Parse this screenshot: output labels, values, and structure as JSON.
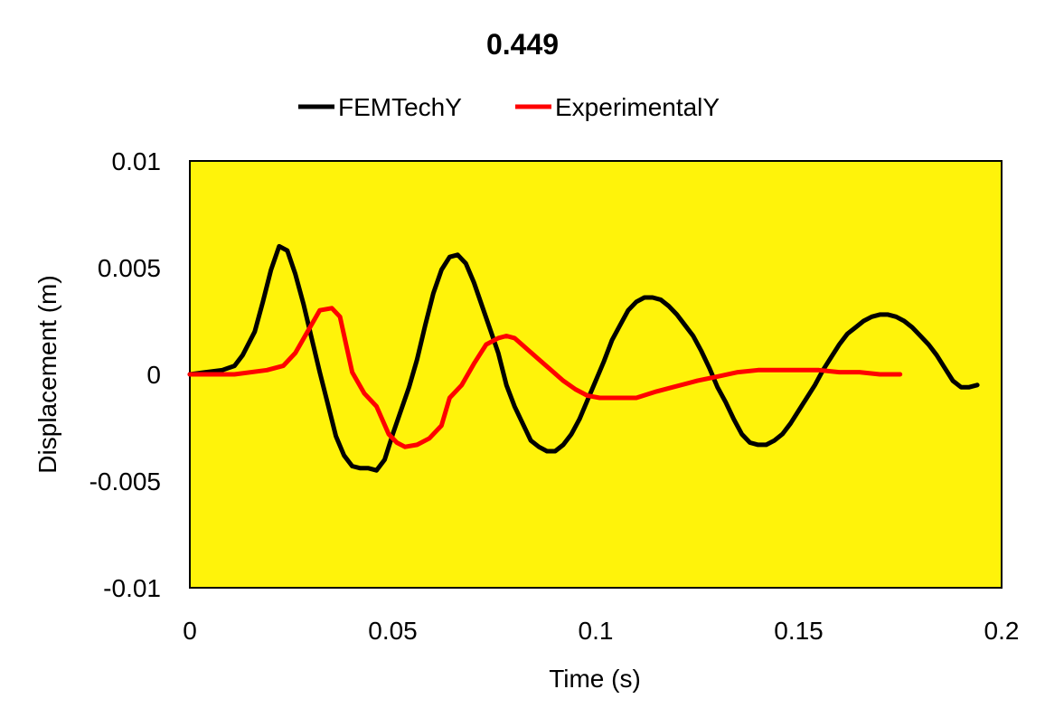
{
  "chart_data": {
    "type": "line",
    "title": "0.449",
    "xlabel": "Time (s)",
    "ylabel": "Displacement (m)",
    "xlim": [
      0,
      0.2
    ],
    "ylim": [
      -0.01,
      0.01
    ],
    "xticks": [
      0,
      0.05,
      0.1,
      0.15,
      0.2
    ],
    "xtick_labels": [
      "0",
      "0.05",
      "0.1",
      "0.15",
      "0.2"
    ],
    "yticks": [
      0.01,
      0.005,
      0,
      -0.005,
      -0.01
    ],
    "ytick_labels": [
      "0.01",
      "0.005",
      "0",
      "-0.005",
      "-0.01"
    ],
    "grid": false,
    "legend_position": "top",
    "plot_background": "#FFF30A",
    "series": [
      {
        "name": "FEMTechY",
        "color": "#000000",
        "x": [
          0,
          0.004,
          0.008,
          0.011,
          0.013,
          0.016,
          0.018,
          0.02,
          0.022,
          0.024,
          0.026,
          0.028,
          0.03,
          0.032,
          0.034,
          0.036,
          0.038,
          0.04,
          0.042,
          0.044,
          0.046,
          0.048,
          0.05,
          0.052,
          0.054,
          0.056,
          0.058,
          0.06,
          0.062,
          0.064,
          0.066,
          0.068,
          0.07,
          0.072,
          0.074,
          0.076,
          0.078,
          0.08,
          0.082,
          0.084,
          0.086,
          0.088,
          0.09,
          0.092,
          0.094,
          0.096,
          0.098,
          0.1,
          0.102,
          0.104,
          0.106,
          0.108,
          0.11,
          0.112,
          0.114,
          0.116,
          0.118,
          0.12,
          0.122,
          0.124,
          0.126,
          0.128,
          0.13,
          0.132,
          0.134,
          0.136,
          0.138,
          0.14,
          0.142,
          0.144,
          0.146,
          0.148,
          0.15,
          0.152,
          0.154,
          0.156,
          0.158,
          0.16,
          0.162,
          0.164,
          0.166,
          0.168,
          0.17,
          0.172,
          0.174,
          0.176,
          0.178,
          0.18,
          0.182,
          0.184,
          0.186,
          0.188,
          0.19,
          0.192,
          0.194
        ],
        "y": [
          0,
          0.0001,
          0.0002,
          0.0004,
          0.0009,
          0.002,
          0.0034,
          0.0049,
          0.006,
          0.0058,
          0.0047,
          0.0033,
          0.0017,
          0.0001,
          -0.0014,
          -0.0029,
          -0.0038,
          -0.0043,
          -0.0044,
          -0.0044,
          -0.0045,
          -0.004,
          -0.0028,
          -0.0017,
          -0.0006,
          0.0007,
          0.0023,
          0.0038,
          0.0049,
          0.0055,
          0.0056,
          0.0052,
          0.0043,
          0.0032,
          0.0021,
          0.001,
          -0.0005,
          -0.0015,
          -0.0023,
          -0.0031,
          -0.0034,
          -0.0036,
          -0.0036,
          -0.0033,
          -0.0028,
          -0.0021,
          -0.0012,
          -0.0003,
          0.0006,
          0.0016,
          0.0023,
          0.003,
          0.0034,
          0.0036,
          0.0036,
          0.0035,
          0.0032,
          0.0028,
          0.0023,
          0.0018,
          0.0011,
          0.0003,
          -0.0006,
          -0.0013,
          -0.0021,
          -0.0028,
          -0.0032,
          -0.0033,
          -0.0033,
          -0.0031,
          -0.0028,
          -0.0023,
          -0.0017,
          -0.0011,
          -0.0005,
          0.0002,
          0.0008,
          0.0014,
          0.0019,
          0.0022,
          0.0025,
          0.0027,
          0.0028,
          0.0028,
          0.0027,
          0.0025,
          0.0022,
          0.0018,
          0.0014,
          0.0009,
          0.0003,
          -0.0003,
          -0.0006,
          -0.0006,
          -0.0005
        ]
      },
      {
        "name": "ExperimentalY",
        "color": "#FF0000",
        "x": [
          0,
          0.011,
          0.019,
          0.023,
          0.026,
          0.029,
          0.032,
          0.035,
          0.037,
          0.04,
          0.043,
          0.046,
          0.049,
          0.051,
          0.053,
          0.056,
          0.059,
          0.062,
          0.064,
          0.067,
          0.07,
          0.073,
          0.076,
          0.078,
          0.08,
          0.083,
          0.086,
          0.089,
          0.092,
          0.095,
          0.098,
          0.101,
          0.105,
          0.11,
          0.115,
          0.119,
          0.125,
          0.13,
          0.135,
          0.14,
          0.145,
          0.15,
          0.155,
          0.16,
          0.165,
          0.17,
          0.175
        ],
        "y": [
          0,
          0,
          0.0002,
          0.0004,
          0.001,
          0.002,
          0.003,
          0.0031,
          0.0027,
          0.0001,
          -0.0009,
          -0.0015,
          -0.0028,
          -0.0032,
          -0.0034,
          -0.0033,
          -0.003,
          -0.0024,
          -0.0011,
          -0.0005,
          0.0005,
          0.0014,
          0.0017,
          0.0018,
          0.0017,
          0.0012,
          0.0007,
          0.0002,
          -0.0003,
          -0.0007,
          -0.001,
          -0.0011,
          -0.0011,
          -0.0011,
          -0.0008,
          -0.0006,
          -0.0003,
          -0.0001,
          0.0001,
          0.0002,
          0.0002,
          0.0002,
          0.0002,
          0.0001,
          0.0001,
          0,
          0
        ]
      }
    ]
  }
}
